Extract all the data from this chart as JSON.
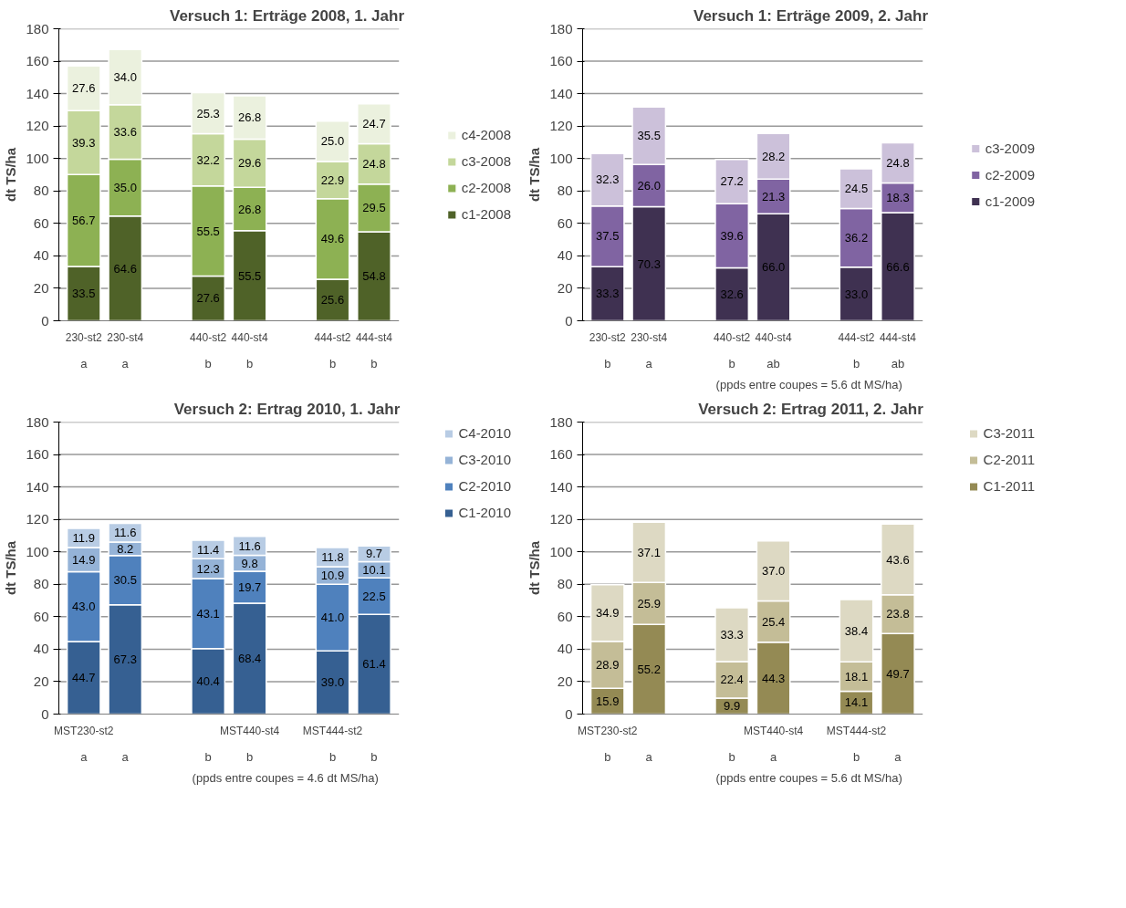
{
  "chart_data": [
    {
      "type": "bar",
      "title": "Versuch 1: Erträge 2008, 1. Jahr",
      "ylabel": "dt TS/ha",
      "categories": [
        "230-st2",
        "230-st4",
        null,
        "440-st2",
        "440-st4",
        null,
        "444-st2",
        "444-st4"
      ],
      "stacked": true,
      "grid": "y",
      "legend": "right",
      "ylim": [
        0,
        180
      ],
      "yticks": [
        0,
        20,
        40,
        60,
        80,
        100,
        120,
        140,
        160,
        180
      ],
      "series": [
        {
          "name": "c1-2008",
          "color": "#4f6228",
          "values": [
            33.5,
            64.6,
            null,
            27.6,
            55.5,
            null,
            25.6,
            54.8
          ],
          "value_labels": [
            "33.5",
            "64.6",
            null,
            "27.6",
            "55.5",
            null,
            "25.6",
            "54.8"
          ]
        },
        {
          "name": "c2-2008",
          "color": "#8db153",
          "values": [
            56.7,
            35.0,
            null,
            55.5,
            26.8,
            null,
            49.6,
            29.5
          ],
          "value_labels": [
            "56.7",
            "35.0",
            null,
            "55.5",
            "26.8",
            null,
            "49.6",
            "29.5"
          ]
        },
        {
          "name": "c3-2008",
          "color": "#c4d79b",
          "values": [
            39.3,
            33.6,
            null,
            32.2,
            29.6,
            null,
            22.9,
            24.8
          ],
          "value_labels": [
            "39.3",
            "33.6",
            null,
            "32.2",
            "29.6",
            null,
            "22.9",
            "24.8"
          ]
        },
        {
          "name": "c4-2008",
          "color": "#ebf1de",
          "values": [
            27.6,
            34.0,
            null,
            25.3,
            26.8,
            null,
            25.0,
            24.7
          ],
          "value_labels": [
            "27.6",
            "34.0",
            null,
            "25.3",
            "26.8",
            null,
            "25.0",
            "24.7"
          ]
        }
      ],
      "annotations": [
        "a",
        "a",
        "b",
        "b",
        "b",
        "b"
      ]
    },
    {
      "type": "bar",
      "title": "Versuch 1: Erträge 2009, 2. Jahr",
      "ylabel": "dt TS/ha",
      "categories": [
        "230-st2",
        "230-st4",
        null,
        "440-st2",
        "440-st4",
        null,
        "444-st2",
        "444-st4"
      ],
      "stacked": true,
      "grid": "y",
      "legend": "right",
      "ylim": [
        0,
        180
      ],
      "yticks": [
        0,
        20,
        40,
        60,
        80,
        100,
        120,
        140,
        160,
        180
      ],
      "series": [
        {
          "name": "c1-2009",
          "color": "#3f3151",
          "values": [
            33.3,
            70.3,
            null,
            32.6,
            66.0,
            null,
            33.0,
            66.6
          ],
          "value_labels": [
            "33.3",
            "70.3",
            null,
            "32.6",
            "66.0",
            null,
            "33.0",
            "66.6"
          ]
        },
        {
          "name": "c2-2009",
          "color": "#8064a2",
          "values": [
            37.5,
            26.0,
            null,
            39.6,
            21.3,
            null,
            36.2,
            18.3
          ],
          "value_labels": [
            "37.5",
            "26.0",
            null,
            "39.6",
            "21.3",
            null,
            "36.2",
            "18.3"
          ]
        },
        {
          "name": "c3-2009",
          "color": "#ccc1da",
          "values": [
            32.3,
            35.5,
            null,
            27.2,
            28.2,
            null,
            24.5,
            24.8
          ],
          "value_labels": [
            "32.3",
            "35.5",
            null,
            "27.2",
            "28.2",
            null,
            "24.5",
            "24.8"
          ]
        }
      ],
      "annotations": [
        "b",
        "a",
        "b",
        "ab",
        "b",
        "ab",
        "(ppds entre coupes =  5.6 dt MS/ha)"
      ]
    },
    {
      "type": "bar",
      "title": "Versuch 2: Ertrag 2010, 1. Jahr",
      "ylabel": "dt TS/ha",
      "categories": [
        "MST230-st2",
        null,
        null,
        null,
        "MST440-st4",
        null,
        "MST444-st2",
        null
      ],
      "stacked": true,
      "grid": "y",
      "legend": "top right",
      "ylim": [
        0,
        180
      ],
      "yticks": [
        0,
        20,
        40,
        60,
        80,
        100,
        120,
        140,
        160,
        180
      ],
      "series": [
        {
          "name": "C1-2010",
          "color": "#366092",
          "values": [
            44.7,
            67.3,
            null,
            40.4,
            68.4,
            null,
            39.0,
            61.4
          ],
          "value_labels": [
            "44.7",
            "67.3",
            null,
            "40.4",
            "68.4",
            null,
            "39.0",
            "61.4"
          ]
        },
        {
          "name": "C2-2010",
          "color": "#4f81bd",
          "values": [
            43.0,
            30.5,
            null,
            43.1,
            19.7,
            null,
            41.0,
            22.5
          ],
          "value_labels": [
            "43.0",
            "30.5",
            null,
            "43.1",
            "19.7",
            null,
            "41.0",
            "22.5"
          ]
        },
        {
          "name": "C3-2010",
          "color": "#95b3d7",
          "values": [
            14.9,
            8.2,
            null,
            12.3,
            9.8,
            null,
            10.9,
            10.1
          ],
          "value_labels": [
            "14.9",
            "8.2",
            null,
            "12.3",
            "9.8",
            null,
            "10.9",
            "10.1"
          ]
        },
        {
          "name": "C4-2010",
          "color": "#b8cce4",
          "values": [
            11.9,
            11.6,
            null,
            11.4,
            11.6,
            null,
            11.8,
            9.7
          ],
          "value_labels": [
            "11.9",
            "11.6",
            null,
            "11.4",
            "11.6",
            null,
            "11.8",
            "9.7"
          ]
        }
      ],
      "annotations": [
        "a",
        "a",
        "b",
        "b",
        "b",
        "b",
        "(ppds entre coupes =  4.6 dt MS/ha)"
      ]
    },
    {
      "type": "bar",
      "title": "Versuch 2: Ertrag 2011, 2. Jahr",
      "ylabel": "dt TS/ha",
      "categories": [
        "MST230-st2",
        null,
        null,
        null,
        "MST440-st4",
        null,
        "MST444-st2",
        null
      ],
      "stacked": true,
      "grid": "y",
      "legend": "top right",
      "ylim": [
        0,
        180
      ],
      "yticks": [
        0,
        20,
        40,
        60,
        80,
        100,
        120,
        140,
        160,
        180
      ],
      "series": [
        {
          "name": "C1-2011",
          "color": "#948a54",
          "values": [
            15.9,
            55.2,
            null,
            9.9,
            44.3,
            null,
            14.1,
            49.7
          ],
          "value_labels": [
            "15.9",
            "55.2",
            null,
            "9.9",
            "44.3",
            null,
            "14.1",
            "49.7"
          ]
        },
        {
          "name": "C2-2011",
          "color": "#c4bd97",
          "values": [
            28.9,
            25.9,
            null,
            22.4,
            25.4,
            null,
            18.1,
            23.8
          ],
          "value_labels": [
            "28.9",
            "25.9",
            null,
            "22.4",
            "25.4",
            null,
            "18.1",
            "23.8"
          ]
        },
        {
          "name": "C3-2011",
          "color": "#ddd9c3",
          "values": [
            34.9,
            37.1,
            null,
            33.3,
            37.0,
            null,
            38.4,
            43.6
          ],
          "value_labels": [
            "34.9",
            "37.1",
            null,
            "33.3",
            "37.0",
            null,
            "38.4",
            "43.6"
          ]
        }
      ],
      "annotations": [
        "b",
        "a",
        "b",
        "a",
        "b",
        "a",
        "(ppds entre coupes =  5.6 dt MS/ha)"
      ]
    }
  ]
}
